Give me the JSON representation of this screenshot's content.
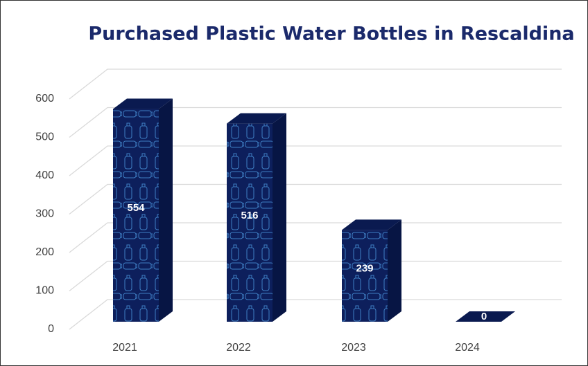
{
  "chart_data": {
    "type": "bar",
    "title": "Purchased Plastic Water Bottles in Rescaldina",
    "categories": [
      "2021",
      "2022",
      "2023",
      "2024"
    ],
    "values": [
      554,
      516,
      239,
      0
    ],
    "color": "#0d1f5c",
    "ylim": [
      0,
      600
    ],
    "yticks": [
      0,
      100,
      200,
      300,
      400,
      500,
      600
    ],
    "grid": true
  }
}
